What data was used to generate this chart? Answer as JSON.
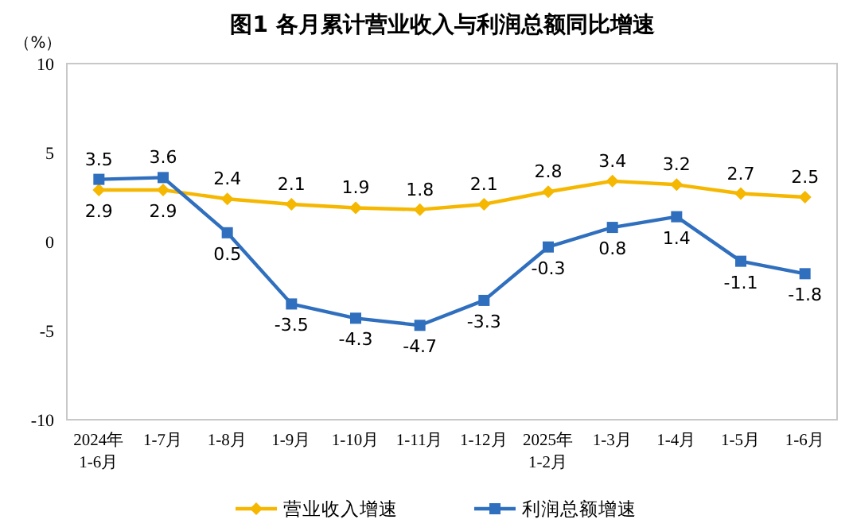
{
  "chart_data": {
    "type": "line",
    "title": "图1  各月累计营业收入与利润总额同比增速",
    "ylabel": "（%）",
    "categories": [
      "2024年\n1-6月",
      "1-7月",
      "1-8月",
      "1-9月",
      "1-10月",
      "1-11月",
      "1-12月",
      "2025年\n1-2月",
      "1-3月",
      "1-4月",
      "1-5月",
      "1-6月"
    ],
    "series": [
      {
        "name": "营业收入增速",
        "color": "#f5b700",
        "marker": "diamond",
        "values": [
          2.9,
          2.9,
          2.4,
          2.1,
          1.9,
          1.8,
          2.1,
          2.8,
          3.4,
          3.2,
          2.7,
          2.5
        ]
      },
      {
        "name": "利润总额增速",
        "color": "#2f6fbe",
        "marker": "square",
        "values": [
          3.5,
          3.6,
          0.5,
          -3.5,
          -4.3,
          -4.7,
          -3.3,
          -0.3,
          0.8,
          1.4,
          -1.1,
          -1.8
        ]
      }
    ],
    "ylim": [
      -10,
      10
    ],
    "yticks": [
      -10,
      -5,
      0,
      5,
      10
    ],
    "grid": false,
    "legend": "bottom",
    "data_labels": true
  }
}
